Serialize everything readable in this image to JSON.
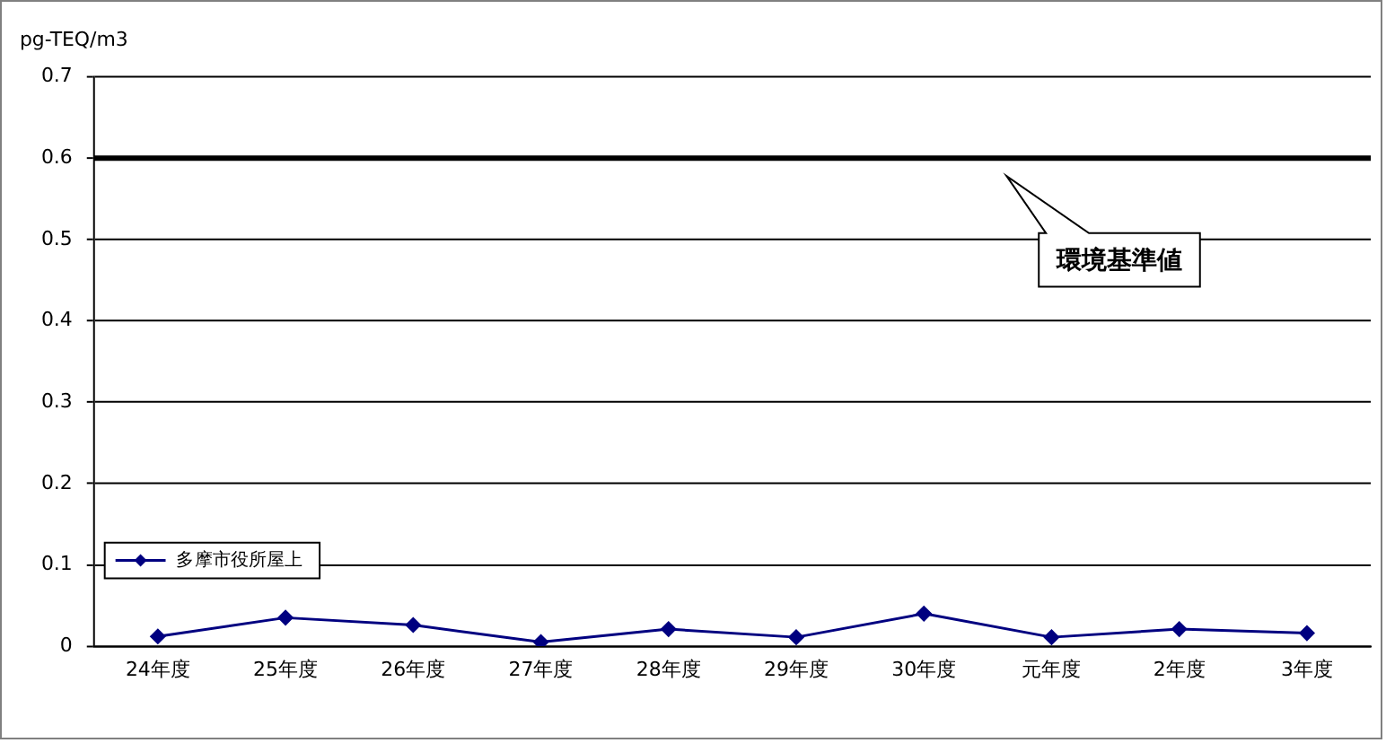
{
  "chart_data": {
    "type": "line",
    "ylabel": "pg-TEQ/m3",
    "categories": [
      "24年度",
      "25年度",
      "26年度",
      "27年度",
      "28年度",
      "29年度",
      "30年度",
      "元年度",
      "2年度",
      "3年度"
    ],
    "series": [
      {
        "name": "多摩市役所屋上",
        "color": "#000080",
        "values": [
          0.012,
          0.035,
          0.026,
          0.005,
          0.021,
          0.011,
          0.04,
          0.011,
          0.021,
          0.016
        ]
      }
    ],
    "ylim": [
      0,
      0.7
    ],
    "yticks": [
      0,
      0.1,
      0.2,
      0.3,
      0.4,
      0.5,
      0.6,
      0.7
    ],
    "ref_lines": [
      {
        "axis": "y",
        "value": 0.6,
        "label": "環境基準値",
        "color": "#000000"
      }
    ],
    "grid": "y",
    "legend": "bottom left",
    "marker": "diamond",
    "line_style": "solid"
  }
}
